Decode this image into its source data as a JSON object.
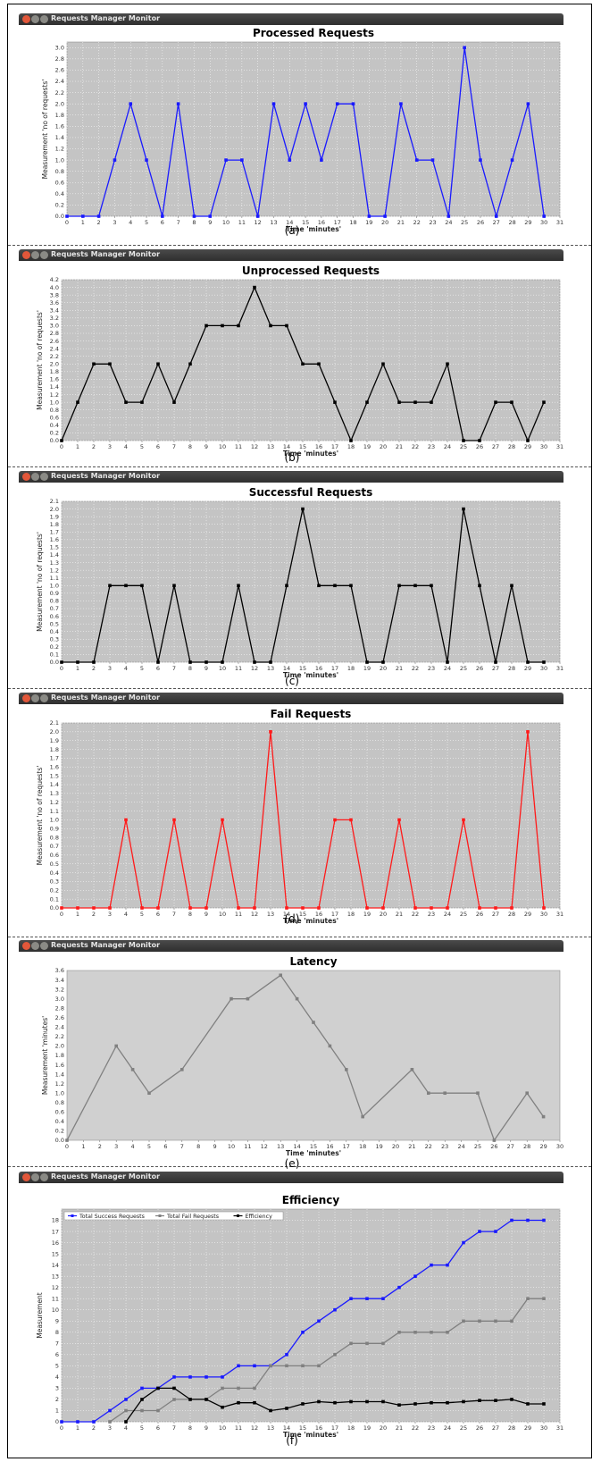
{
  "window_title": "Requests Manager Monitor",
  "chart_data": [
    {
      "type": "line",
      "caption": "(a)",
      "title": "Processed Requests",
      "xlabel": "Time 'minutes'",
      "ylabel": "Measurement 'no of requests'",
      "xlim": [
        0,
        31
      ],
      "ylim": [
        0,
        3.1
      ],
      "xticks": [
        0,
        1,
        2,
        3,
        4,
        5,
        6,
        7,
        8,
        9,
        10,
        11,
        12,
        13,
        14,
        15,
        16,
        17,
        18,
        19,
        20,
        21,
        22,
        23,
        24,
        25,
        26,
        27,
        28,
        29,
        30,
        31
      ],
      "yticks": [
        "0.0",
        "0.2",
        "0.4",
        "0.6",
        "0.8",
        "1.0",
        "1.2",
        "1.4",
        "1.6",
        "1.8",
        "2.0",
        "2.2",
        "2.4",
        "2.6",
        "2.8",
        "3.0"
      ],
      "grid": true,
      "series": [
        {
          "color": "#1a1aff",
          "x": [
            0,
            1,
            2,
            3,
            4,
            5,
            6,
            7,
            8,
            9,
            10,
            11,
            12,
            13,
            14,
            15,
            16,
            17,
            18,
            19,
            20,
            21,
            22,
            23,
            24,
            25,
            26,
            27,
            28,
            29,
            30
          ],
          "values": [
            0,
            0,
            0,
            1,
            2,
            1,
            0,
            2,
            0,
            0,
            1,
            1,
            0,
            2,
            1,
            2,
            1,
            2,
            2,
            0,
            0,
            2,
            1,
            1,
            0,
            3,
            1,
            0,
            1,
            2,
            0
          ]
        }
      ]
    },
    {
      "type": "line",
      "caption": "(b)",
      "title": "Unprocessed Requests",
      "xlabel": "Time 'minutes'",
      "ylabel": "Measurement 'no of requests'",
      "xlim": [
        0,
        31
      ],
      "ylim": [
        0,
        4.2
      ],
      "xticks": [
        0,
        1,
        2,
        3,
        4,
        5,
        6,
        7,
        8,
        9,
        10,
        11,
        12,
        13,
        14,
        15,
        16,
        17,
        18,
        19,
        20,
        21,
        22,
        23,
        24,
        25,
        26,
        27,
        28,
        29,
        30,
        31
      ],
      "yticks": [
        "0.0",
        "0.2",
        "0.4",
        "0.6",
        "0.8",
        "1.0",
        "1.2",
        "1.4",
        "1.6",
        "1.8",
        "2.0",
        "2.2",
        "2.4",
        "2.6",
        "2.8",
        "3.0",
        "3.2",
        "3.4",
        "3.6",
        "3.8",
        "4.0",
        "4.2"
      ],
      "grid": true,
      "series": [
        {
          "color": "#000000",
          "x": [
            0,
            1,
            2,
            3,
            4,
            5,
            6,
            7,
            8,
            9,
            10,
            11,
            12,
            13,
            14,
            15,
            16,
            17,
            18,
            19,
            20,
            21,
            22,
            23,
            24,
            25,
            26,
            27,
            28,
            29,
            30
          ],
          "values": [
            0,
            1,
            2,
            2,
            1,
            1,
            2,
            1,
            2,
            3,
            3,
            3,
            4,
            3,
            3,
            2,
            2,
            1,
            0,
            1,
            2,
            1,
            1,
            1,
            2,
            0,
            0,
            1,
            1,
            0,
            1
          ]
        }
      ]
    },
    {
      "type": "line",
      "caption": "(c)",
      "title": "Successful Requests",
      "xlabel": "Time 'minutes'",
      "ylabel": "Measurement 'no of requests'",
      "xlim": [
        0,
        31
      ],
      "ylim": [
        0,
        2.1
      ],
      "xticks": [
        0,
        1,
        2,
        3,
        4,
        5,
        6,
        7,
        8,
        9,
        10,
        11,
        12,
        13,
        14,
        15,
        16,
        17,
        18,
        19,
        20,
        21,
        22,
        23,
        24,
        25,
        26,
        27,
        28,
        29,
        30,
        31
      ],
      "yticks": [
        "0.0",
        "0.1",
        "0.2",
        "0.3",
        "0.4",
        "0.5",
        "0.6",
        "0.7",
        "0.8",
        "0.9",
        "1.0",
        "1.1",
        "1.2",
        "1.3",
        "1.4",
        "1.5",
        "1.6",
        "1.7",
        "1.8",
        "1.9",
        "2.0",
        "2.1"
      ],
      "grid": true,
      "series": [
        {
          "color": "#000000",
          "x": [
            0,
            1,
            2,
            3,
            4,
            5,
            6,
            7,
            8,
            9,
            10,
            11,
            12,
            13,
            14,
            15,
            16,
            17,
            18,
            19,
            20,
            21,
            22,
            23,
            24,
            25,
            26,
            27,
            28,
            29,
            30
          ],
          "values": [
            0,
            0,
            0,
            1,
            1,
            1,
            0,
            1,
            0,
            0,
            0,
            1,
            0,
            0,
            1,
            2,
            1,
            1,
            1,
            0,
            0,
            1,
            1,
            1,
            0,
            2,
            1,
            0,
            1,
            0,
            0
          ]
        }
      ]
    },
    {
      "type": "line",
      "caption": "(d)",
      "title": "Fail Requests",
      "xlabel": "Time 'minutes'",
      "ylabel": "Measurement 'no of requests'",
      "xlim": [
        0,
        31
      ],
      "ylim": [
        0,
        2.1
      ],
      "xticks": [
        0,
        1,
        2,
        3,
        4,
        5,
        6,
        7,
        8,
        9,
        10,
        11,
        12,
        13,
        14,
        15,
        16,
        17,
        18,
        19,
        20,
        21,
        22,
        23,
        24,
        25,
        26,
        27,
        28,
        29,
        30,
        31
      ],
      "yticks": [
        "0.0",
        "0.1",
        "0.2",
        "0.3",
        "0.4",
        "0.5",
        "0.6",
        "0.7",
        "0.8",
        "0.9",
        "1.0",
        "1.1",
        "1.2",
        "1.3",
        "1.4",
        "1.5",
        "1.6",
        "1.7",
        "1.8",
        "1.9",
        "2.0",
        "2.1"
      ],
      "grid": true,
      "series": [
        {
          "color": "#ff1a1a",
          "x": [
            0,
            1,
            2,
            3,
            4,
            5,
            6,
            7,
            8,
            9,
            10,
            11,
            12,
            13,
            14,
            15,
            16,
            17,
            18,
            19,
            20,
            21,
            22,
            23,
            24,
            25,
            26,
            27,
            28,
            29,
            30
          ],
          "values": [
            0,
            0,
            0,
            0,
            1,
            0,
            0,
            1,
            0,
            0,
            1,
            0,
            0,
            2,
            0,
            0,
            0,
            1,
            1,
            0,
            0,
            1,
            0,
            0,
            0,
            1,
            0,
            0,
            0,
            2,
            0
          ]
        }
      ]
    },
    {
      "type": "line",
      "caption": "(e)",
      "title": "Latency",
      "xlabel": "Time 'minutes'",
      "ylabel": "Measurement 'minutes'",
      "xlim": [
        0,
        30
      ],
      "ylim": [
        0,
        3.6
      ],
      "xticks": [
        0,
        1,
        2,
        3,
        4,
        5,
        6,
        7,
        8,
        9,
        10,
        11,
        12,
        13,
        14,
        15,
        16,
        17,
        18,
        19,
        20,
        21,
        22,
        23,
        24,
        25,
        26,
        27,
        28,
        29,
        30
      ],
      "yticks": [
        "0.0",
        "0.2",
        "0.4",
        "0.6",
        "0.8",
        "1.0",
        "1.2",
        "1.4",
        "1.6",
        "1.8",
        "2.0",
        "2.2",
        "2.4",
        "2.6",
        "2.8",
        "3.0",
        "3.2",
        "3.4",
        "3.6"
      ],
      "grid": false,
      "series": [
        {
          "color": "#808080",
          "x": [
            0,
            3,
            4,
            5,
            7,
            10,
            11,
            13,
            14,
            15,
            16,
            17,
            18,
            21,
            22,
            23,
            25,
            26,
            28,
            29
          ],
          "values": [
            0,
            2,
            1.5,
            1,
            1.5,
            3,
            3,
            3.5,
            3,
            2.5,
            2,
            1.5,
            0.5,
            1.5,
            1,
            1,
            1,
            0,
            1,
            0.5
          ]
        }
      ]
    },
    {
      "type": "line",
      "caption": "(f)",
      "title": "Efficiency",
      "xlabel": "Time 'minutes'",
      "ylabel": "Measurement",
      "xlim": [
        0,
        31
      ],
      "ylim": [
        0,
        19
      ],
      "xticks": [
        0,
        1,
        2,
        3,
        4,
        5,
        6,
        7,
        8,
        9,
        10,
        11,
        12,
        13,
        14,
        15,
        16,
        17,
        18,
        19,
        20,
        21,
        22,
        23,
        24,
        25,
        26,
        27,
        28,
        29,
        30,
        31
      ],
      "yticks": [
        "0",
        "1",
        "2",
        "3",
        "4",
        "5",
        "6",
        "7",
        "8",
        "9",
        "10",
        "11",
        "12",
        "13",
        "14",
        "15",
        "16",
        "17",
        "18"
      ],
      "grid": true,
      "legend": "top-left",
      "series": [
        {
          "name": "Total Success Requests",
          "color": "#1a1aff",
          "x": [
            0,
            1,
            2,
            3,
            4,
            5,
            6,
            7,
            8,
            9,
            10,
            11,
            12,
            13,
            14,
            15,
            16,
            17,
            18,
            19,
            20,
            21,
            22,
            23,
            24,
            25,
            26,
            27,
            28,
            29,
            30
          ],
          "values": [
            0,
            0,
            0,
            1,
            2,
            3,
            3,
            4,
            4,
            4,
            4,
            5,
            5,
            5,
            6,
            8,
            9,
            10,
            11,
            11,
            11,
            12,
            13,
            14,
            14,
            16,
            17,
            17,
            18,
            18,
            18
          ]
        },
        {
          "name": "Total Fail Requests",
          "color": "#808080",
          "x": [
            3,
            4,
            5,
            6,
            7,
            8,
            9,
            10,
            11,
            12,
            13,
            14,
            15,
            16,
            17,
            18,
            19,
            20,
            21,
            22,
            23,
            24,
            25,
            26,
            27,
            28,
            29,
            30
          ],
          "values": [
            0,
            1,
            1,
            1,
            2,
            2,
            2,
            3,
            3,
            3,
            5,
            5,
            5,
            5,
            6,
            7,
            7,
            7,
            8,
            8,
            8,
            8,
            9,
            9,
            9,
            9,
            11,
            11
          ]
        },
        {
          "name": "Efficiency",
          "color": "#000000",
          "x": [
            4,
            5,
            6,
            7,
            8,
            9,
            10,
            11,
            12,
            13,
            14,
            15,
            16,
            17,
            18,
            19,
            20,
            21,
            22,
            23,
            24,
            25,
            26,
            27,
            28,
            29,
            30
          ],
          "values": [
            0,
            2,
            3,
            3,
            2,
            2,
            1.3,
            1.7,
            1.7,
            1,
            1.2,
            1.6,
            1.8,
            1.7,
            1.8,
            1.8,
            1.8,
            1.5,
            1.6,
            1.7,
            1.7,
            1.8,
            1.9,
            1.9,
            2,
            1.6,
            1.6
          ]
        }
      ]
    }
  ]
}
